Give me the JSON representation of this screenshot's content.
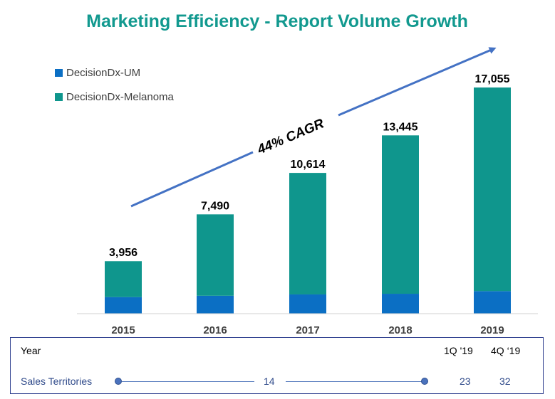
{
  "chart_data": {
    "type": "bar",
    "stacked": true,
    "title": "Marketing Efficiency - Report Volume Growth",
    "categories": [
      "2015",
      "2016",
      "2017",
      "2018",
      "2019"
    ],
    "series": [
      {
        "name": "DecisionDx-UM",
        "color": "#0b6fc4",
        "values": [
          1250,
          1350,
          1450,
          1500,
          1700
        ]
      },
      {
        "name": "DecisionDx-Melanoma",
        "color": "#0f968d",
        "values": [
          2706,
          6140,
          9164,
          11945,
          15355
        ]
      }
    ],
    "totals": [
      "3,956",
      "7,490",
      "10,614",
      "13,445",
      "17,055"
    ],
    "ylim": [
      0,
      17700
    ],
    "legend": "top-left",
    "annotation": "44% CAGR",
    "title_color": "#12998f",
    "arrow_color": "#4472c4"
  },
  "table": {
    "year_label": "Year",
    "quarters": [
      "1Q '19",
      "4Q ‘19"
    ],
    "sales_label": "Sales Territories",
    "mid_value": "14",
    "values": [
      "23",
      "32"
    ]
  }
}
